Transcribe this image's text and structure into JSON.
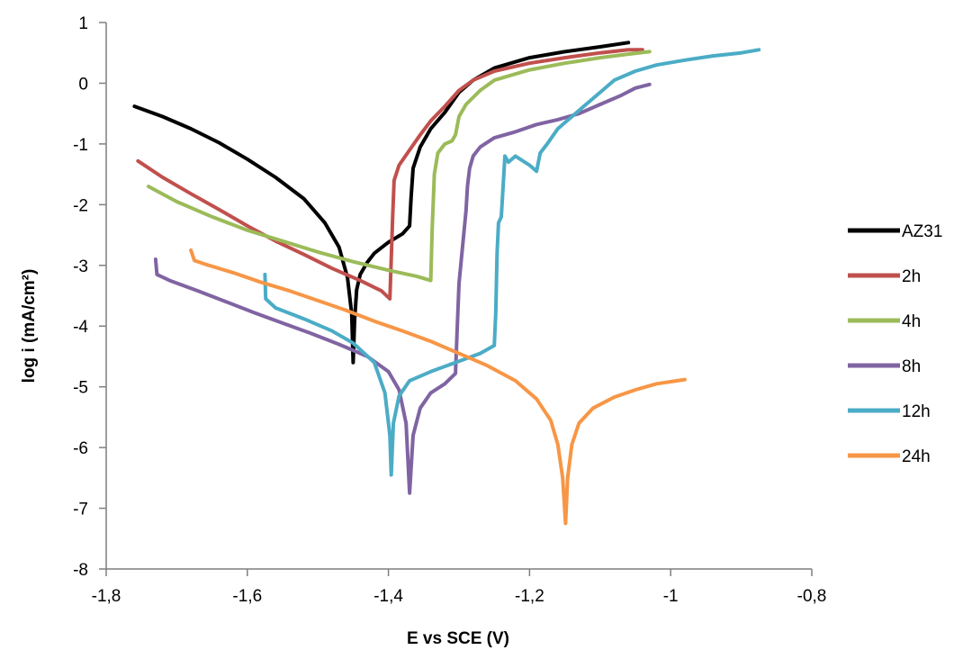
{
  "chart_data": {
    "type": "line",
    "xlabel": "E vs SCE (V)",
    "ylabel": "log i (mA/cm²)",
    "xlim": [
      -1.8,
      -0.8
    ],
    "ylim": [
      -8,
      1
    ],
    "xticks": [
      -1.8,
      -1.6,
      -1.4,
      -1.2,
      -1.0,
      -0.8
    ],
    "xtick_labels": [
      "-1,8",
      "-1,6",
      "-1,4",
      "-1,2",
      "-1",
      "-0,8"
    ],
    "yticks": [
      1,
      0,
      -1,
      -2,
      -3,
      -4,
      -5,
      -6,
      -7,
      -8
    ],
    "ytick_labels": [
      "1",
      "0",
      "-1",
      "-2",
      "-3",
      "-4",
      "-5",
      "-6",
      "-7",
      "-8"
    ],
    "grid": false,
    "legend_position": "right",
    "series": [
      {
        "name": "AZ31",
        "color": "#000000",
        "points": [
          [
            -1.76,
            -0.38
          ],
          [
            -1.72,
            -0.55
          ],
          [
            -1.68,
            -0.75
          ],
          [
            -1.64,
            -0.98
          ],
          [
            -1.6,
            -1.25
          ],
          [
            -1.56,
            -1.55
          ],
          [
            -1.52,
            -1.9
          ],
          [
            -1.49,
            -2.3
          ],
          [
            -1.47,
            -2.7
          ],
          [
            -1.458,
            -3.2
          ],
          [
            -1.452,
            -3.8
          ],
          [
            -1.45,
            -4.6
          ],
          [
            -1.448,
            -3.9
          ],
          [
            -1.445,
            -3.4
          ],
          [
            -1.44,
            -3.15
          ],
          [
            -1.43,
            -2.95
          ],
          [
            -1.42,
            -2.8
          ],
          [
            -1.4,
            -2.62
          ],
          [
            -1.38,
            -2.48
          ],
          [
            -1.37,
            -2.35
          ],
          [
            -1.368,
            -1.9
          ],
          [
            -1.365,
            -1.4
          ],
          [
            -1.355,
            -1.05
          ],
          [
            -1.34,
            -0.75
          ],
          [
            -1.32,
            -0.48
          ],
          [
            -1.3,
            -0.15
          ],
          [
            -1.28,
            0.05
          ],
          [
            -1.25,
            0.25
          ],
          [
            -1.2,
            0.42
          ],
          [
            -1.15,
            0.52
          ],
          [
            -1.1,
            0.6
          ],
          [
            -1.06,
            0.67
          ]
        ]
      },
      {
        "name": "2h",
        "color": "#c0504d",
        "points": [
          [
            -1.755,
            -1.28
          ],
          [
            -1.72,
            -1.55
          ],
          [
            -1.68,
            -1.82
          ],
          [
            -1.64,
            -2.08
          ],
          [
            -1.6,
            -2.35
          ],
          [
            -1.56,
            -2.6
          ],
          [
            -1.52,
            -2.82
          ],
          [
            -1.48,
            -3.05
          ],
          [
            -1.44,
            -3.25
          ],
          [
            -1.41,
            -3.42
          ],
          [
            -1.398,
            -3.55
          ],
          [
            -1.396,
            -2.9
          ],
          [
            -1.394,
            -2.2
          ],
          [
            -1.392,
            -1.6
          ],
          [
            -1.385,
            -1.35
          ],
          [
            -1.37,
            -1.1
          ],
          [
            -1.355,
            -0.85
          ],
          [
            -1.34,
            -0.62
          ],
          [
            -1.32,
            -0.38
          ],
          [
            -1.3,
            -0.12
          ],
          [
            -1.28,
            0.05
          ],
          [
            -1.25,
            0.2
          ],
          [
            -1.2,
            0.33
          ],
          [
            -1.15,
            0.42
          ],
          [
            -1.1,
            0.5
          ],
          [
            -1.06,
            0.55
          ],
          [
            -1.04,
            0.55
          ]
        ]
      },
      {
        "name": "4h",
        "color": "#9bbb59",
        "points": [
          [
            -1.74,
            -1.7
          ],
          [
            -1.7,
            -1.95
          ],
          [
            -1.65,
            -2.2
          ],
          [
            -1.6,
            -2.42
          ],
          [
            -1.55,
            -2.6
          ],
          [
            -1.5,
            -2.78
          ],
          [
            -1.45,
            -2.94
          ],
          [
            -1.4,
            -3.08
          ],
          [
            -1.36,
            -3.18
          ],
          [
            -1.34,
            -3.25
          ],
          [
            -1.338,
            -2.4
          ],
          [
            -1.335,
            -1.5
          ],
          [
            -1.33,
            -1.15
          ],
          [
            -1.32,
            -1.0
          ],
          [
            -1.31,
            -0.95
          ],
          [
            -1.305,
            -0.85
          ],
          [
            -1.3,
            -0.55
          ],
          [
            -1.29,
            -0.35
          ],
          [
            -1.27,
            -0.12
          ],
          [
            -1.25,
            0.05
          ],
          [
            -1.2,
            0.22
          ],
          [
            -1.15,
            0.33
          ],
          [
            -1.1,
            0.42
          ],
          [
            -1.06,
            0.48
          ],
          [
            -1.03,
            0.52
          ]
        ]
      },
      {
        "name": "8h",
        "color": "#8064a2",
        "points": [
          [
            -1.73,
            -2.9
          ],
          [
            -1.728,
            -3.15
          ],
          [
            -1.71,
            -3.25
          ],
          [
            -1.67,
            -3.42
          ],
          [
            -1.63,
            -3.6
          ],
          [
            -1.59,
            -3.78
          ],
          [
            -1.55,
            -3.95
          ],
          [
            -1.51,
            -4.12
          ],
          [
            -1.47,
            -4.3
          ],
          [
            -1.43,
            -4.5
          ],
          [
            -1.4,
            -4.75
          ],
          [
            -1.385,
            -5.05
          ],
          [
            -1.375,
            -5.6
          ],
          [
            -1.37,
            -6.75
          ],
          [
            -1.365,
            -5.8
          ],
          [
            -1.355,
            -5.35
          ],
          [
            -1.34,
            -5.1
          ],
          [
            -1.32,
            -4.95
          ],
          [
            -1.305,
            -4.78
          ],
          [
            -1.303,
            -4.2
          ],
          [
            -1.3,
            -3.3
          ],
          [
            -1.295,
            -2.7
          ],
          [
            -1.29,
            -2.1
          ],
          [
            -1.288,
            -1.7
          ],
          [
            -1.285,
            -1.4
          ],
          [
            -1.28,
            -1.2
          ],
          [
            -1.27,
            -1.05
          ],
          [
            -1.25,
            -0.9
          ],
          [
            -1.22,
            -0.8
          ],
          [
            -1.19,
            -0.68
          ],
          [
            -1.16,
            -0.6
          ],
          [
            -1.13,
            -0.5
          ],
          [
            -1.1,
            -0.35
          ],
          [
            -1.07,
            -0.2
          ],
          [
            -1.05,
            -0.08
          ],
          [
            -1.03,
            -0.02
          ]
        ]
      },
      {
        "name": "12h",
        "color": "#4bacc6",
        "points": [
          [
            -1.575,
            -3.15
          ],
          [
            -1.574,
            -3.55
          ],
          [
            -1.56,
            -3.7
          ],
          [
            -1.52,
            -3.88
          ],
          [
            -1.48,
            -4.08
          ],
          [
            -1.45,
            -4.28
          ],
          [
            -1.42,
            -4.6
          ],
          [
            -1.405,
            -5.1
          ],
          [
            -1.398,
            -5.8
          ],
          [
            -1.396,
            -6.45
          ],
          [
            -1.393,
            -5.6
          ],
          [
            -1.385,
            -5.15
          ],
          [
            -1.37,
            -4.9
          ],
          [
            -1.34,
            -4.75
          ],
          [
            -1.3,
            -4.58
          ],
          [
            -1.27,
            -4.45
          ],
          [
            -1.25,
            -4.32
          ],
          [
            -1.248,
            -3.8
          ],
          [
            -1.246,
            -2.8
          ],
          [
            -1.244,
            -2.3
          ],
          [
            -1.24,
            -2.2
          ],
          [
            -1.235,
            -1.2
          ],
          [
            -1.23,
            -1.3
          ],
          [
            -1.22,
            -1.2
          ],
          [
            -1.2,
            -1.35
          ],
          [
            -1.19,
            -1.45
          ],
          [
            -1.185,
            -1.15
          ],
          [
            -1.175,
            -1.0
          ],
          [
            -1.16,
            -0.75
          ],
          [
            -1.14,
            -0.55
          ],
          [
            -1.12,
            -0.35
          ],
          [
            -1.1,
            -0.15
          ],
          [
            -1.08,
            0.05
          ],
          [
            -1.05,
            0.2
          ],
          [
            -1.02,
            0.3
          ],
          [
            -0.98,
            0.38
          ],
          [
            -0.94,
            0.45
          ],
          [
            -0.9,
            0.5
          ],
          [
            -0.875,
            0.55
          ]
        ]
      },
      {
        "name": "24h",
        "color": "#f79646",
        "points": [
          [
            -1.68,
            -2.75
          ],
          [
            -1.675,
            -2.92
          ],
          [
            -1.66,
            -2.98
          ],
          [
            -1.62,
            -3.12
          ],
          [
            -1.58,
            -3.28
          ],
          [
            -1.54,
            -3.42
          ],
          [
            -1.5,
            -3.58
          ],
          [
            -1.46,
            -3.74
          ],
          [
            -1.42,
            -3.92
          ],
          [
            -1.38,
            -4.08
          ],
          [
            -1.34,
            -4.25
          ],
          [
            -1.3,
            -4.45
          ],
          [
            -1.26,
            -4.65
          ],
          [
            -1.22,
            -4.9
          ],
          [
            -1.19,
            -5.2
          ],
          [
            -1.17,
            -5.55
          ],
          [
            -1.16,
            -5.95
          ],
          [
            -1.153,
            -6.5
          ],
          [
            -1.149,
            -7.25
          ],
          [
            -1.146,
            -6.5
          ],
          [
            -1.14,
            -5.95
          ],
          [
            -1.13,
            -5.6
          ],
          [
            -1.11,
            -5.35
          ],
          [
            -1.08,
            -5.17
          ],
          [
            -1.05,
            -5.05
          ],
          [
            -1.02,
            -4.95
          ],
          [
            -0.98,
            -4.88
          ]
        ]
      }
    ]
  }
}
